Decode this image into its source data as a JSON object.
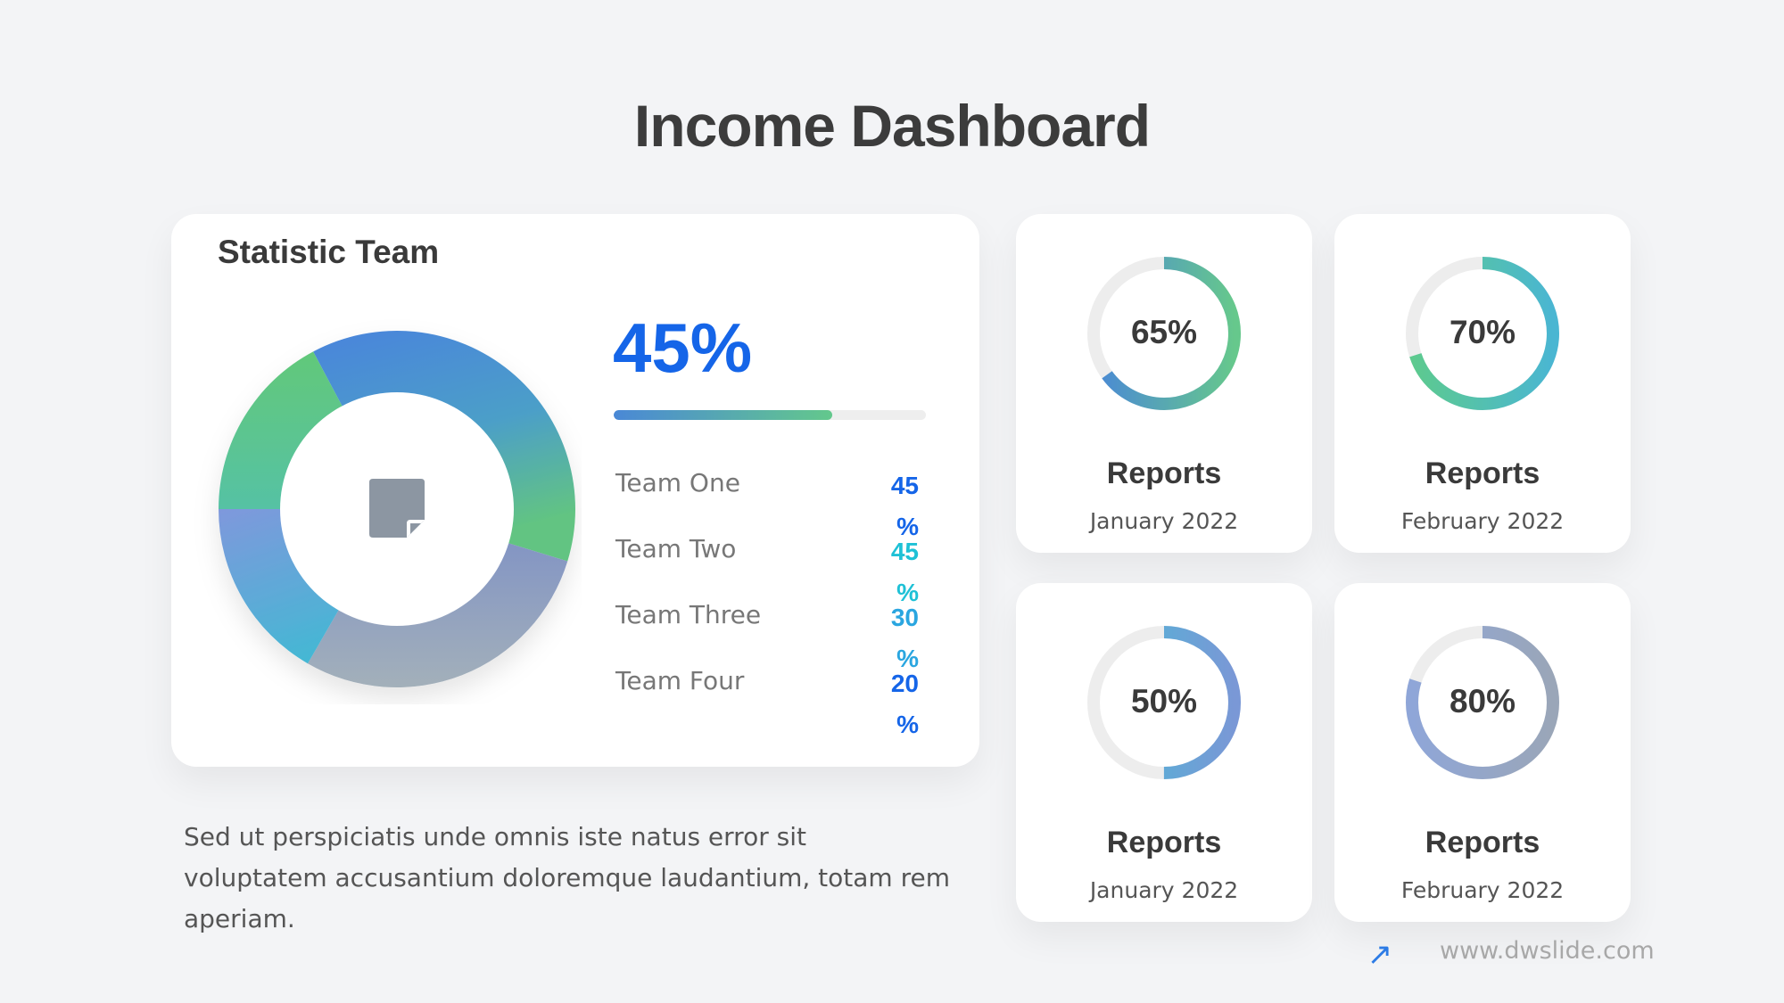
{
  "title": "Income Dashboard",
  "statistic": {
    "title": "Statistic Team",
    "headline": "45%",
    "progress_fraction": 0.7,
    "teams": [
      {
        "label": "Team One",
        "value": "45",
        "unit": "%",
        "color": "#1565e8"
      },
      {
        "label": "Team Two",
        "value": "45",
        "unit": "%",
        "color": "#1ec1d6"
      },
      {
        "label": "Team Three",
        "value": "30",
        "unit": "%",
        "color": "#2aa6e0"
      },
      {
        "label": "Team Four",
        "value": "20",
        "unit": "%",
        "color": "#1565e8"
      }
    ],
    "center_icon": "sticky-note-icon"
  },
  "reports": [
    {
      "pct": "65%",
      "fraction": 0.65,
      "title": "Reports",
      "date": "January 2022",
      "colors": [
        "#4a88d6",
        "#66c88c"
      ]
    },
    {
      "pct": "70%",
      "fraction": 0.7,
      "title": "Reports",
      "date": "February 2022",
      "colors": [
        "#5dca8e",
        "#4ab6d2"
      ]
    },
    {
      "pct": "50%",
      "fraction": 0.5,
      "title": "Reports",
      "date": "January 2022",
      "colors": [
        "#49b9d6",
        "#7a98d6"
      ]
    },
    {
      "pct": "80%",
      "fraction": 0.8,
      "title": "Reports",
      "date": "February 2022",
      "colors": [
        "#8fa6d8",
        "#9aa6b8"
      ]
    }
  ],
  "description": "Sed ut perspiciatis unde omnis iste natus error sit voluptatem accusantium doloremque laudantium, totam rem aperiam.",
  "footer": {
    "icon": "arrow-up-right-icon",
    "url": "www.dwslide.com"
  }
}
